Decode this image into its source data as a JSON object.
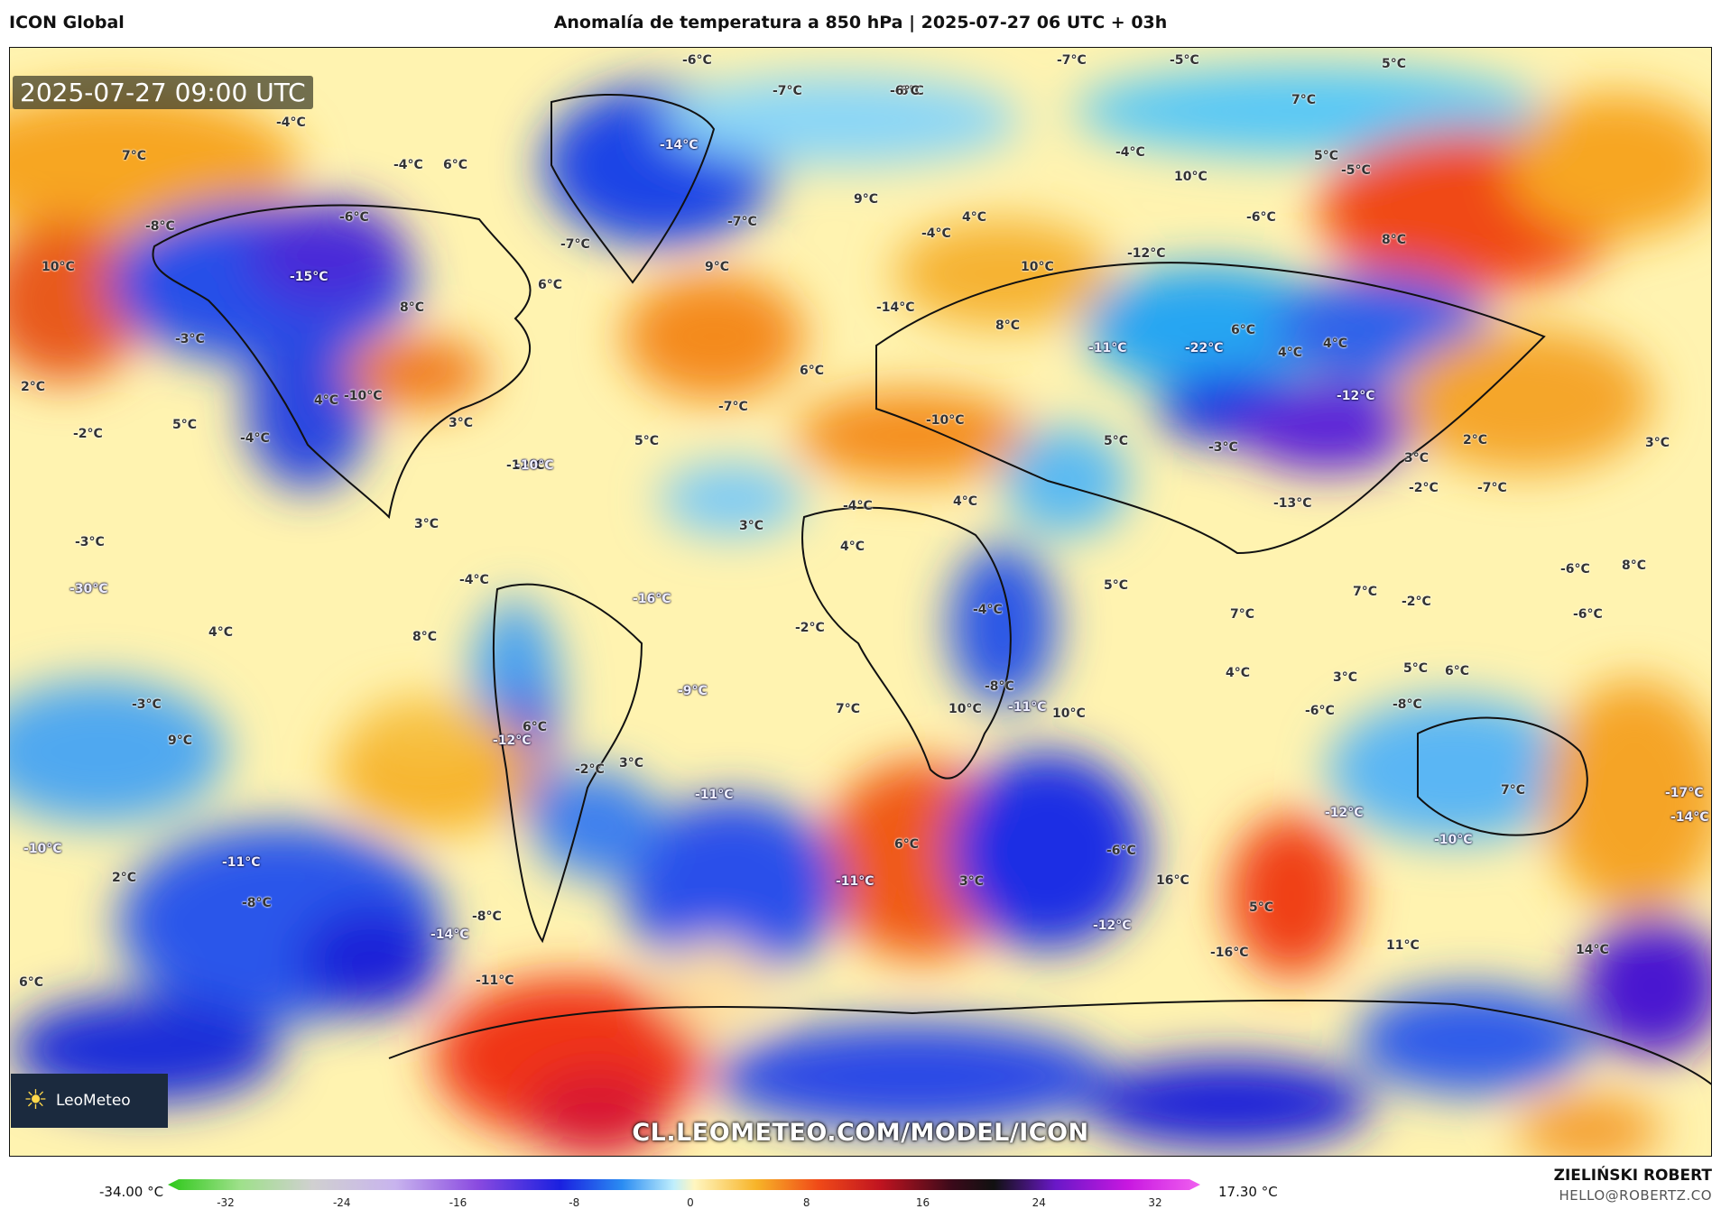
{
  "header": {
    "app_title": "ICON Global",
    "map_title": "Anomalía de temperatura a 850 hPa | 2025-07-27 06 UTC + 03h"
  },
  "map": {
    "timestamp": "2025-07-27 09:00 UTC",
    "url": "CL.LEOMETEO.COM/MODEL/ICON",
    "logo_text": "LeoMeteo",
    "labels": [
      {
        "text": "-6°C",
        "dark": false
      },
      {
        "text": "-6°C",
        "dark": false
      },
      {
        "text": "-7°C",
        "dark": false
      },
      {
        "text": "-5°C",
        "dark": false
      },
      {
        "text": "5°C",
        "dark": false
      },
      {
        "text": "-7°C",
        "dark": false
      },
      {
        "text": "-6°C",
        "dark": false
      },
      {
        "text": "7°C",
        "dark": false
      },
      {
        "text": "-4°C",
        "dark": false
      },
      {
        "text": "-5°C",
        "dark": false
      },
      {
        "text": "-14°C",
        "dark": true
      },
      {
        "text": "7°C",
        "dark": false
      },
      {
        "text": "6°C",
        "dark": false
      },
      {
        "text": "-4°C",
        "dark": false
      },
      {
        "text": "10°C",
        "dark": false
      },
      {
        "text": "-4°C",
        "dark": false
      },
      {
        "text": "-8°C",
        "dark": false
      },
      {
        "text": "-6°C",
        "dark": false
      },
      {
        "text": "-7°C",
        "dark": false
      },
      {
        "text": "4°C",
        "dark": false
      },
      {
        "text": "9°C",
        "dark": false
      },
      {
        "text": "5°C",
        "dark": false
      },
      {
        "text": "-6°C",
        "dark": false
      },
      {
        "text": "10°C",
        "dark": false
      },
      {
        "text": "-7°C",
        "dark": false
      },
      {
        "text": "-4°C",
        "dark": false
      },
      {
        "text": "-12°C",
        "dark": false
      },
      {
        "text": "8°C",
        "dark": false
      },
      {
        "text": "-15°C",
        "dark": true
      },
      {
        "text": "9°C",
        "dark": false
      },
      {
        "text": "10°C",
        "dark": false
      },
      {
        "text": "6°C",
        "dark": false
      },
      {
        "text": "8°C",
        "dark": false
      },
      {
        "text": "-14°C",
        "dark": false
      },
      {
        "text": "-3°C",
        "dark": false
      },
      {
        "text": "8°C",
        "dark": false
      },
      {
        "text": "-11°C",
        "dark": true
      },
      {
        "text": "-22°C",
        "dark": true
      },
      {
        "text": "6°C",
        "dark": false
      },
      {
        "text": "4°C",
        "dark": false
      },
      {
        "text": "4°C",
        "dark": false
      },
      {
        "text": "2°C",
        "dark": false
      },
      {
        "text": "6°C",
        "dark": false
      },
      {
        "text": "4°C",
        "dark": false
      },
      {
        "text": "-10°C",
        "dark": false
      },
      {
        "text": "-7°C",
        "dark": false
      },
      {
        "text": "-10°C",
        "dark": false
      },
      {
        "text": "-12°C",
        "dark": true
      },
      {
        "text": "5°C",
        "dark": false
      },
      {
        "text": "-2°C",
        "dark": false
      },
      {
        "text": "3°C",
        "dark": false
      },
      {
        "text": "-4°C",
        "dark": false
      },
      {
        "text": "5°C",
        "dark": false
      },
      {
        "text": "5°C",
        "dark": false
      },
      {
        "text": "-3°C",
        "dark": false
      },
      {
        "text": "2°C",
        "dark": false
      },
      {
        "text": "3°C",
        "dark": false
      },
      {
        "text": "-12°C",
        "dark": false
      },
      {
        "text": "-10°C",
        "dark": true
      },
      {
        "text": "3°C",
        "dark": false
      },
      {
        "text": "-2°C",
        "dark": false
      },
      {
        "text": "-13°C",
        "dark": false
      },
      {
        "text": "-7°C",
        "dark": false
      },
      {
        "text": "4°C",
        "dark": false
      },
      {
        "text": "3°C",
        "dark": false
      },
      {
        "text": "-4°C",
        "dark": false
      },
      {
        "text": "3°C",
        "dark": false
      },
      {
        "text": "-3°C",
        "dark": false
      },
      {
        "text": "-8°C",
        "dark": false
      },
      {
        "text": "4°C",
        "dark": false
      },
      {
        "text": "-4°C",
        "dark": false
      },
      {
        "text": "4°C",
        "dark": false
      },
      {
        "text": "5°C",
        "dark": false
      },
      {
        "text": "-30°C",
        "dark": true
      },
      {
        "text": "6°C",
        "dark": false
      },
      {
        "text": "-16°C",
        "dark": true
      },
      {
        "text": "-4°C",
        "dark": false
      },
      {
        "text": "7°C",
        "dark": false
      },
      {
        "text": "-2°C",
        "dark": false
      },
      {
        "text": "7°C",
        "dark": false
      },
      {
        "text": "-6°C",
        "dark": false
      },
      {
        "text": "-6°C",
        "dark": false
      },
      {
        "text": "8°C",
        "dark": false
      },
      {
        "text": "-2°C",
        "dark": false
      },
      {
        "text": "6°C",
        "dark": false
      },
      {
        "text": "4°C",
        "dark": false
      },
      {
        "text": "3°C",
        "dark": false
      },
      {
        "text": "8°C",
        "dark": false
      },
      {
        "text": "-3°C",
        "dark": false
      },
      {
        "text": "-8°C",
        "dark": false
      },
      {
        "text": "-9°C",
        "dark": true
      },
      {
        "text": "7°C",
        "dark": false
      },
      {
        "text": "10°C",
        "dark": false
      },
      {
        "text": "-11°C",
        "dark": true
      },
      {
        "text": "10°C",
        "dark": false
      },
      {
        "text": "-6°C",
        "dark": false
      },
      {
        "text": "5°C",
        "dark": false
      },
      {
        "text": "9°C",
        "dark": false
      },
      {
        "text": "-12°C",
        "dark": true
      },
      {
        "text": "-2°C",
        "dark": false
      },
      {
        "text": "3°C",
        "dark": false
      },
      {
        "text": "-11°C",
        "dark": true
      },
      {
        "text": "7°C",
        "dark": false
      },
      {
        "text": "-17°C",
        "dark": true
      },
      {
        "text": "6°C",
        "dark": false
      },
      {
        "text": "-6°C",
        "dark": false
      },
      {
        "text": "-12°C",
        "dark": true
      },
      {
        "text": "-10°C",
        "dark": true
      },
      {
        "text": "-10°C",
        "dark": true
      },
      {
        "text": "-14°C",
        "dark": true
      },
      {
        "text": "2°C",
        "dark": false
      },
      {
        "text": "-11°C",
        "dark": true
      },
      {
        "text": "-11°C",
        "dark": true
      },
      {
        "text": "3°C",
        "dark": false
      },
      {
        "text": "16°C",
        "dark": false
      },
      {
        "text": "-12°C",
        "dark": true
      },
      {
        "text": "-8°C",
        "dark": false
      },
      {
        "text": "-8°C",
        "dark": false
      },
      {
        "text": "-14°C",
        "dark": true
      },
      {
        "text": "5°C",
        "dark": false
      },
      {
        "text": "-16°C",
        "dark": false
      },
      {
        "text": "11°C",
        "dark": false
      },
      {
        "text": "14°C",
        "dark": false
      },
      {
        "text": "6°C",
        "dark": false
      },
      {
        "text": "-11°C",
        "dark": false
      }
    ]
  },
  "colorbar": {
    "min_label": "-34.00 °C",
    "max_label": "17.30 °C",
    "ticks": [
      "-32",
      "-24",
      "-16",
      "-8",
      "0",
      "8",
      "16",
      "24",
      "32"
    ]
  },
  "footer": {
    "author": "ZIELIŃSKI ROBERT",
    "email": "HELLO@ROBERTZ.CO"
  }
}
